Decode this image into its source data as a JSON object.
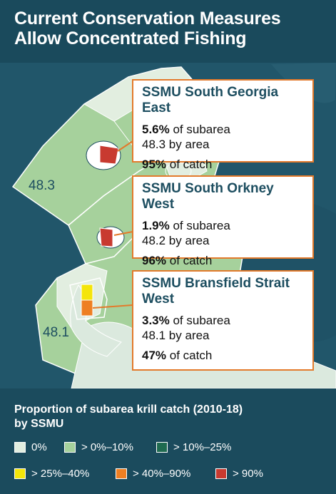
{
  "title_lines": [
    "Current Conservation Measures",
    "Allow Concentrated Fishing"
  ],
  "map": {
    "subarea_labels": [
      "48.3",
      "48.2",
      "48.1"
    ],
    "background_color": "#1d4e60",
    "land_color": "#dbe9de"
  },
  "callouts": [
    {
      "name_lines": [
        "SSMU South Georgia East"
      ],
      "subarea_pct": "5.6%",
      "subarea_text": " of subarea",
      "area_text": "48.3 by area",
      "catch_pct": "95%",
      "catch_text": " of catch"
    },
    {
      "name_lines": [
        "SSMU South Orkney West"
      ],
      "subarea_pct": "1.9%",
      "subarea_text": " of subarea",
      "area_text": "48.2 by area",
      "catch_pct": "96%",
      "catch_text": " of catch"
    },
    {
      "name_lines": [
        "SSMU Bransfield Strait",
        "West"
      ],
      "subarea_pct": "3.3%",
      "subarea_text": " of subarea",
      "area_text": "48.1 by area",
      "catch_pct": "47%",
      "catch_text": " of catch"
    }
  ],
  "legend": {
    "title_lines": [
      "Proportion of subarea krill catch (2010-18)",
      "by SSMU"
    ],
    "items": [
      {
        "label": "0%",
        "color": "#e2eee0"
      },
      {
        "label": "> 0%–10%",
        "color": "#a6d19c"
      },
      {
        "label": "> 10%–25%",
        "color": "#1f6b50"
      },
      {
        "label": "> 25%–40%",
        "color": "#f4e50a"
      },
      {
        "label": "> 40%–90%",
        "color": "#ee7f22"
      },
      {
        "label": "> 90%",
        "color": "#c83a30"
      }
    ]
  },
  "colors": {
    "callout_border": "#e37a2b",
    "callout_title": "#1d4e60"
  }
}
